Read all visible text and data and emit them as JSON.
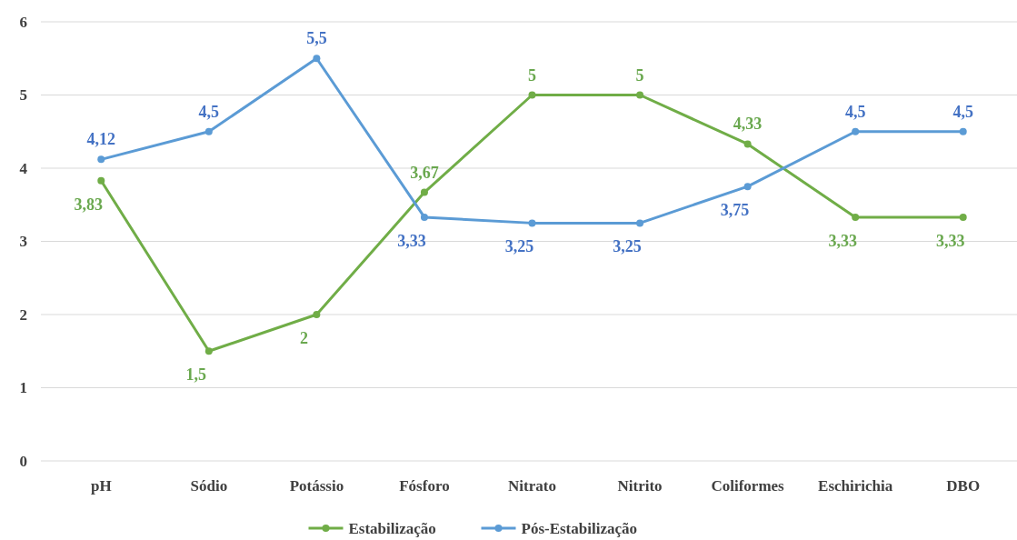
{
  "chart_data": {
    "type": "line",
    "categories": [
      "pH",
      "Sódio",
      "Potássio",
      "Fósforo",
      "Nitrato",
      "Nitrito",
      "Coliformes",
      "Eschirichia",
      "DBO"
    ],
    "series": [
      {
        "name": "Estabilização",
        "color": "#70ad47",
        "values": [
          3.83,
          1.5,
          2,
          3.67,
          5,
          5,
          4.33,
          3.33,
          3.33
        ],
        "value_labels": [
          "3,83",
          "1,5",
          "2",
          "3,67",
          "5",
          "5",
          "4,33",
          "3,33",
          "3,33"
        ]
      },
      {
        "name": "Pós-Estabilização",
        "color": "#5b9bd5",
        "values": [
          4.12,
          4.5,
          5.5,
          3.33,
          3.25,
          3.25,
          3.75,
          4.5,
          4.5
        ],
        "value_labels": [
          "4,12",
          "4,5",
          "5,5",
          "3,33",
          "3,25",
          "3,25",
          "3,75",
          "4,5",
          "4,5"
        ]
      }
    ],
    "ylim": [
      0,
      6
    ],
    "yticks": [
      0,
      1,
      2,
      3,
      4,
      5,
      6
    ],
    "grid": "y",
    "legend": "bottom",
    "marker": "circle",
    "line_style": "solid"
  }
}
